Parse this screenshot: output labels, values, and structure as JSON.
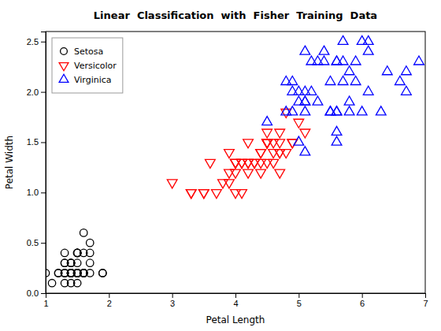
{
  "chart_data": {
    "type": "scatter",
    "title": "Linear  Classification  with  Fisher  Training  Data",
    "xlabel": "Petal Length",
    "ylabel": "Petal Width",
    "xlim": [
      1,
      7
    ],
    "ylim": [
      0,
      2.6
    ],
    "xticks": [
      1,
      2,
      3,
      4,
      5,
      6,
      7
    ],
    "yticks": [
      {
        "value": 0,
        "label": "0.0"
      },
      0.5,
      {
        "value": 1.0,
        "label": "1.0"
      },
      1.5,
      {
        "value": 2.0,
        "label": "2.0"
      },
      2.5
    ],
    "grid": false,
    "legend": "top-left",
    "series": [
      {
        "name": "Setosa",
        "color": "#000000",
        "marker": "circle",
        "x": [
          1.4,
          1.4,
          1.3,
          1.5,
          1.4,
          1.7,
          1.4,
          1.5,
          1.4,
          1.5,
          1.5,
          1.6,
          1.4,
          1.1,
          1.2,
          1.5,
          1.3,
          1.4,
          1.7,
          1.5,
          1.7,
          1.5,
          1.0,
          1.7,
          1.9,
          1.6,
          1.6,
          1.5,
          1.4,
          1.6,
          1.6,
          1.5,
          1.5,
          1.4,
          1.5,
          1.2,
          1.3,
          1.4,
          1.3,
          1.5,
          1.3,
          1.3,
          1.3,
          1.6,
          1.9,
          1.4,
          1.6,
          1.4,
          1.5,
          1.4
        ],
        "values": [
          0.2,
          0.2,
          0.2,
          0.2,
          0.2,
          0.4,
          0.3,
          0.2,
          0.2,
          0.1,
          0.2,
          0.2,
          0.1,
          0.1,
          0.2,
          0.4,
          0.4,
          0.3,
          0.3,
          0.3,
          0.2,
          0.4,
          0.2,
          0.5,
          0.2,
          0.2,
          0.4,
          0.2,
          0.2,
          0.2,
          0.6,
          0.4,
          0.4,
          0.2,
          0.2,
          0.2,
          0.2,
          0.2,
          0.1,
          0.2,
          0.2,
          0.3,
          0.3,
          0.2,
          0.2,
          0.3,
          0.2,
          0.2,
          0.2,
          0.2
        ]
      },
      {
        "name": "Versicolor",
        "color": "#ff0000",
        "marker": "triangle-down",
        "x": [
          4.7,
          4.5,
          4.9,
          4.0,
          4.6,
          4.5,
          4.7,
          3.3,
          4.6,
          3.9,
          3.5,
          4.2,
          4.0,
          4.7,
          3.6,
          4.4,
          4.5,
          4.1,
          4.5,
          3.9,
          4.8,
          4.0,
          4.9,
          4.7,
          4.3,
          4.4,
          4.8,
          5.0,
          4.5,
          3.5,
          3.8,
          3.7,
          3.9,
          5.1,
          4.5,
          4.5,
          4.7,
          4.4,
          4.1,
          4.0,
          4.4,
          4.6,
          4.0,
          3.3,
          4.2,
          4.2,
          4.2,
          4.3,
          3.0,
          4.1
        ],
        "values": [
          1.4,
          1.5,
          1.5,
          1.3,
          1.5,
          1.3,
          1.6,
          1.0,
          1.3,
          1.4,
          1.0,
          1.5,
          1.0,
          1.4,
          1.3,
          1.4,
          1.5,
          1.0,
          1.5,
          1.1,
          1.8,
          1.3,
          1.5,
          1.2,
          1.3,
          1.4,
          1.4,
          1.7,
          1.5,
          1.0,
          1.1,
          1.0,
          1.2,
          1.6,
          1.5,
          1.6,
          1.5,
          1.3,
          1.3,
          1.3,
          1.2,
          1.4,
          1.2,
          1.0,
          1.3,
          1.2,
          1.3,
          1.3,
          1.1,
          1.3
        ]
      },
      {
        "name": "Virginica",
        "color": "#0000ff",
        "marker": "triangle-up",
        "x": [
          6.0,
          5.1,
          5.9,
          5.6,
          5.8,
          6.6,
          4.5,
          6.3,
          5.8,
          6.1,
          5.1,
          5.3,
          5.5,
          5.0,
          5.1,
          5.3,
          5.5,
          6.7,
          6.9,
          5.0,
          5.7,
          4.9,
          6.7,
          4.9,
          5.7,
          6.0,
          4.8,
          4.9,
          5.6,
          5.8,
          6.1,
          6.4,
          5.6,
          5.1,
          5.6,
          6.1,
          5.6,
          5.5,
          4.8,
          5.4,
          5.6,
          5.1,
          5.9,
          5.7,
          5.2,
          5.0,
          5.2,
          5.4,
          5.1
        ],
        "values": [
          2.5,
          1.9,
          2.1,
          1.8,
          2.2,
          2.1,
          1.7,
          1.8,
          1.8,
          2.5,
          2.0,
          1.9,
          2.1,
          2.0,
          2.4,
          2.3,
          1.8,
          2.2,
          2.3,
          1.5,
          2.3,
          2.0,
          2.0,
          1.8,
          2.1,
          1.8,
          1.8,
          2.1,
          1.6,
          1.9,
          2.0,
          2.2,
          1.5,
          1.4,
          2.3,
          2.4,
          1.8,
          1.8,
          2.1,
          2.4,
          2.3,
          1.9,
          2.3,
          2.5,
          2.3,
          1.9,
          2.0,
          2.3,
          1.8
        ]
      }
    ]
  }
}
